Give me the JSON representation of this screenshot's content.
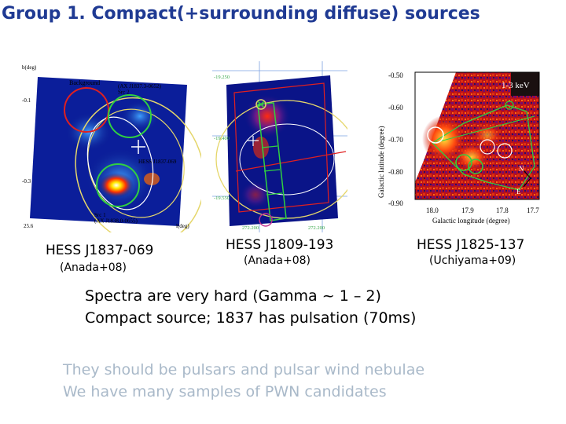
{
  "slide": {
    "title": "Group 1. Compact(+surrounding diffuse) sources"
  },
  "panels": [
    {
      "name": "HESS J1837-069",
      "caption": "HESS J1837-069",
      "reference": "(Anada+08)",
      "image_labels": {
        "unit_y": "b(deg)",
        "unit_x": "l(deg)",
        "background": "Background",
        "src2": "(AX J1837.3-0652)\nSrc 2",
        "hess": "HESS J1837-069",
        "src1": "Src 1\n(AX J1838.0-0655)",
        "tick_y1": "-0.1",
        "tick_y2": "-0.3",
        "tick_x": "25.6"
      }
    },
    {
      "name": "HESS J1809-193",
      "caption": "HESS J1809-193",
      "reference": "(Anada+08)",
      "image_labels": {
        "tick_top": "-19.250",
        "tick_mid": "-19.400",
        "tick_low": "-19.550",
        "tick_bottom": "272.200",
        "tick_bottom2": "272.200"
      }
    },
    {
      "name": "HESS J1825-137",
      "caption": "HESS J1825-137",
      "reference": "(Uchiyama+09)",
      "image_labels": {
        "energy_band": "1-3 keV",
        "y_axis_label": "Galactic latitude (degree)",
        "x_axis_label": "Galactic longitude (degree)",
        "y_ticks": [
          "-0.50",
          "-0.60",
          "-0.70",
          "-0.80",
          "-0.90"
        ],
        "x_ticks": [
          "18.0",
          "17.9",
          "17.8",
          "17.7"
        ],
        "compass_n": "N",
        "compass_e": "E"
      }
    }
  ],
  "bullets": [
    "Spectra are very hard (Gamma ~ 1 – 2)",
    "Compact source; 1837 has pulsation (70ms)"
  ],
  "notes": [
    "They should be pulsars and pulsar wind nebulae",
    "We have many samples of PWN candidates"
  ]
}
